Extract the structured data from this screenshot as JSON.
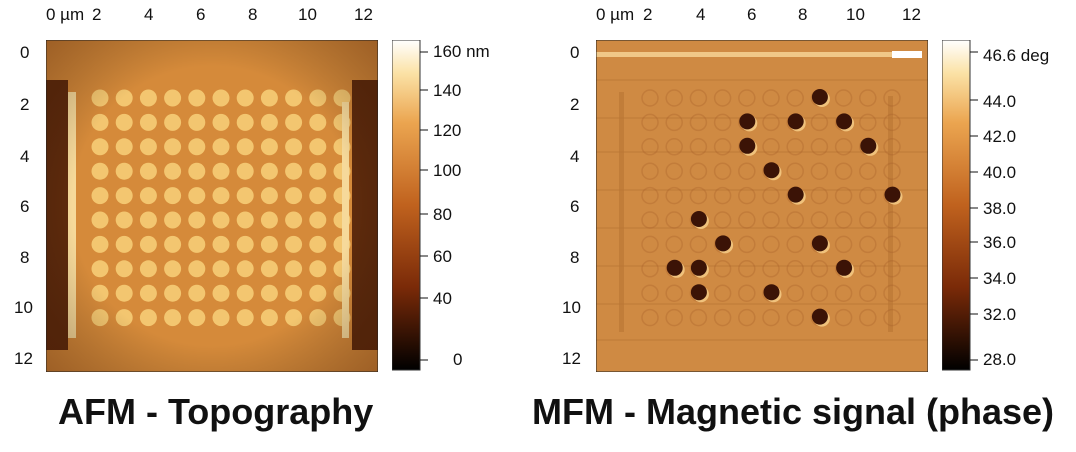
{
  "panels": [
    {
      "caption": "AFM - Topography",
      "x_ticks": [
        "0 µm",
        "2",
        "4",
        "6",
        "8",
        "10",
        "12"
      ],
      "y_ticks": [
        "0",
        "2",
        "4",
        "6",
        "8",
        "10",
        "12"
      ],
      "colorbar_labels": [
        "160 nm",
        "140",
        "120",
        "100",
        "80",
        "60",
        "40",
        "0"
      ],
      "grid": {
        "rows": 10,
        "cols": 11
      }
    },
    {
      "caption": "MFM - Magnetic signal (phase)",
      "x_ticks": [
        "0 µm",
        "2",
        "4",
        "6",
        "8",
        "10",
        "12"
      ],
      "y_ticks": [
        "0",
        "2",
        "4",
        "6",
        "8",
        "10",
        "12"
      ],
      "colorbar_labels": [
        "46.6 deg",
        "44.0",
        "42.0",
        "40.0",
        "38.0",
        "36.0",
        "34.0",
        "32.0",
        "28.0"
      ]
    }
  ],
  "colors": {
    "afm_background": "#d58a3a",
    "afm_dot": "#f3c670",
    "mfm_background": "#cf8a43",
    "mfm_dark_dot": "#3b1306",
    "colormap_dark": "#000000",
    "colormap_mid": "#c0621e",
    "colormap_light": "#ffffff"
  }
}
